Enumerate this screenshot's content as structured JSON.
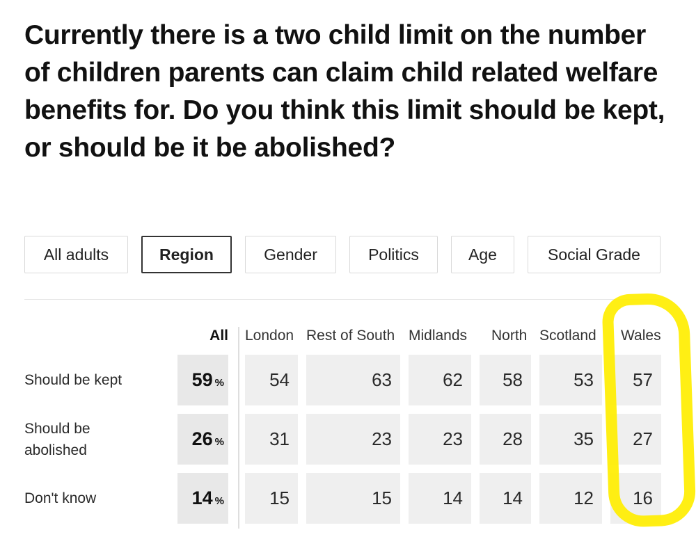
{
  "question": "Currently there is a two child limit on the number of children parents can claim child related welfare benefits for. Do you think this limit should be kept, or should be it be abolished?",
  "tabs": [
    {
      "label": "All adults",
      "active": false
    },
    {
      "label": "Region",
      "active": true
    },
    {
      "label": "Gender",
      "active": false
    },
    {
      "label": "Politics",
      "active": false
    },
    {
      "label": "Age",
      "active": false
    },
    {
      "label": "Social Grade",
      "active": false
    }
  ],
  "table": {
    "columns": [
      "All",
      "London",
      "Rest of South",
      "Midlands",
      "North",
      "Scotland",
      "Wales"
    ],
    "percent_symbol": "%",
    "rows": [
      {
        "label": "Should be kept",
        "all": "59",
        "values": [
          "54",
          "63",
          "62",
          "58",
          "53",
          "57"
        ]
      },
      {
        "label": "Should be abolished",
        "all": "26",
        "values": [
          "31",
          "23",
          "23",
          "28",
          "35",
          "27"
        ]
      },
      {
        "label": "Don't know",
        "all": "14",
        "values": [
          "15",
          "15",
          "14",
          "14",
          "12",
          "16"
        ]
      }
    ]
  },
  "annotation": {
    "color": "#ffee00",
    "target_column": "Wales"
  }
}
